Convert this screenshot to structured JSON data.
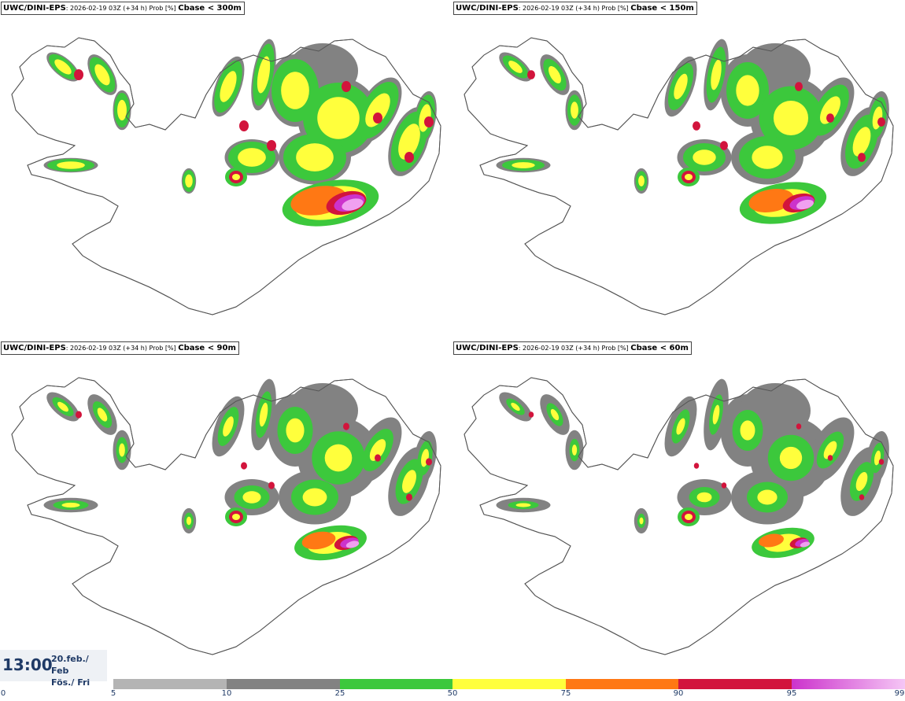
{
  "panels": [
    {
      "model": "UWC/DINI-EPS",
      "meta": ": 2026-02-19 03Z (+34 h) Prob [%] ",
      "threshold": "Cbase < 300m"
    },
    {
      "model": "UWC/DINI-EPS",
      "meta": ": 2026-02-19 03Z (+34 h) Prob [%] ",
      "threshold": "Cbase < 150m"
    },
    {
      "model": "UWC/DINI-EPS",
      "meta": ": 2026-02-19 03Z (+34 h) Prob [%] ",
      "threshold": "Cbase < 90m"
    },
    {
      "model": "UWC/DINI-EPS",
      "meta": ": 2026-02-19 03Z (+34 h) Prob [%] ",
      "threshold": "Cbase < 60m"
    }
  ],
  "valid_time": {
    "time": "13:00",
    "date_line1": "20.feb./ Feb",
    "date_line2": "Fös./ Fri"
  },
  "legend": {
    "ticks": [
      "0",
      "5",
      "10",
      "25",
      "50",
      "75",
      "90",
      "95",
      "99"
    ],
    "colors": {
      "5-10": "#b4b4b4",
      "10-25": "#828282",
      "25-50": "#3cc83c",
      "50-75": "#ffff3c",
      "75-90": "#ff7814",
      "90-95": "#d2143c",
      "95-99": [
        "#cc33cc",
        "#f5c6f5"
      ]
    }
  },
  "colors": {
    "coast": "#555555",
    "gray_light": "#b4b4b4",
    "gray_dark": "#828282",
    "green": "#3cc83c",
    "yellow": "#ffff3c",
    "orange": "#ff7814",
    "red": "#d2143c",
    "magenta": "#cc33cc",
    "pink": "#f0a0f0"
  }
}
